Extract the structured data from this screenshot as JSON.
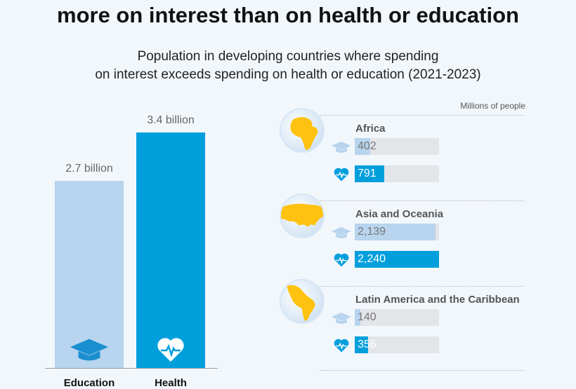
{
  "title": "more on interest than on health or education",
  "subtitle_line1": "Population in developing countries where spending",
  "subtitle_line2": "on interest exceeds spending on health or education (2021-2023)",
  "colors": {
    "education": "#b8d4ee",
    "health": "#009fdc",
    "globe_land": "#ffc20e",
    "track": "#e3e5e9"
  },
  "chart_data": [
    {
      "type": "bar",
      "categories": [
        "Education",
        "Health"
      ],
      "values": [
        2.7,
        3.4
      ],
      "data_labels": [
        "2.7 billion",
        "3.4 billion"
      ],
      "unit": "billion people",
      "icons": [
        "graduation-cap-icon",
        "heart-pulse-icon"
      ]
    },
    {
      "type": "bar",
      "orientation": "horizontal",
      "unit_label": "Millions of people",
      "xlim": [
        0,
        2240
      ],
      "regions": [
        {
          "name": "Africa",
          "education": 402,
          "health": 791,
          "education_label": "402",
          "health_label": "791"
        },
        {
          "name": "Asia and Oceania",
          "education": 2139,
          "health": 2240,
          "education_label": "2,139",
          "health_label": "2,240"
        },
        {
          "name": "Latin America and the Caribbean",
          "education": 140,
          "health": 356,
          "education_label": "140",
          "health_label": "356"
        }
      ]
    }
  ]
}
